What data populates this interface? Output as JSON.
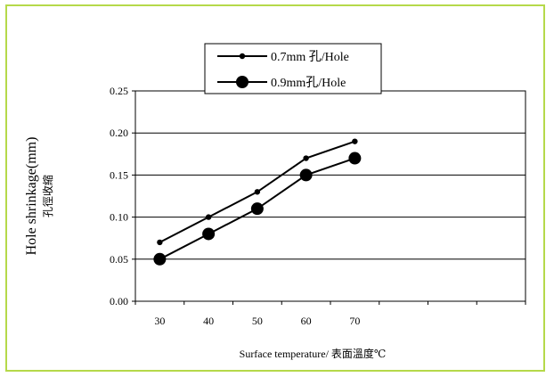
{
  "chart_data": {
    "type": "line",
    "x": [
      30,
      40,
      50,
      60,
      70
    ],
    "categories": [
      "30",
      "40",
      "50",
      "60",
      "70"
    ],
    "series": [
      {
        "name": "0.7mm 孔/Hole",
        "values": [
          0.07,
          0.1,
          0.13,
          0.17,
          0.19
        ],
        "color": "#000000",
        "marker": "small-circle"
      },
      {
        "name": "0.9mm孔/Hole",
        "values": [
          0.05,
          0.08,
          0.11,
          0.15,
          0.17
        ],
        "color": "#000000",
        "marker": "large-circle"
      }
    ],
    "xlabel": "Surface temperature/ 表面溫度℃",
    "ylabel": "Hole shrinkage(mm)",
    "ylabel_secondary": "孔徑收縮",
    "ylim": [
      0,
      0.25
    ],
    "yticks": [
      "0.00",
      "0.05",
      "0.10",
      "0.15",
      "0.20",
      "0.25"
    ],
    "grid": true,
    "legend_position": "top"
  },
  "colors": {
    "frame_border": "#b5d94a",
    "grid": "#000000"
  }
}
